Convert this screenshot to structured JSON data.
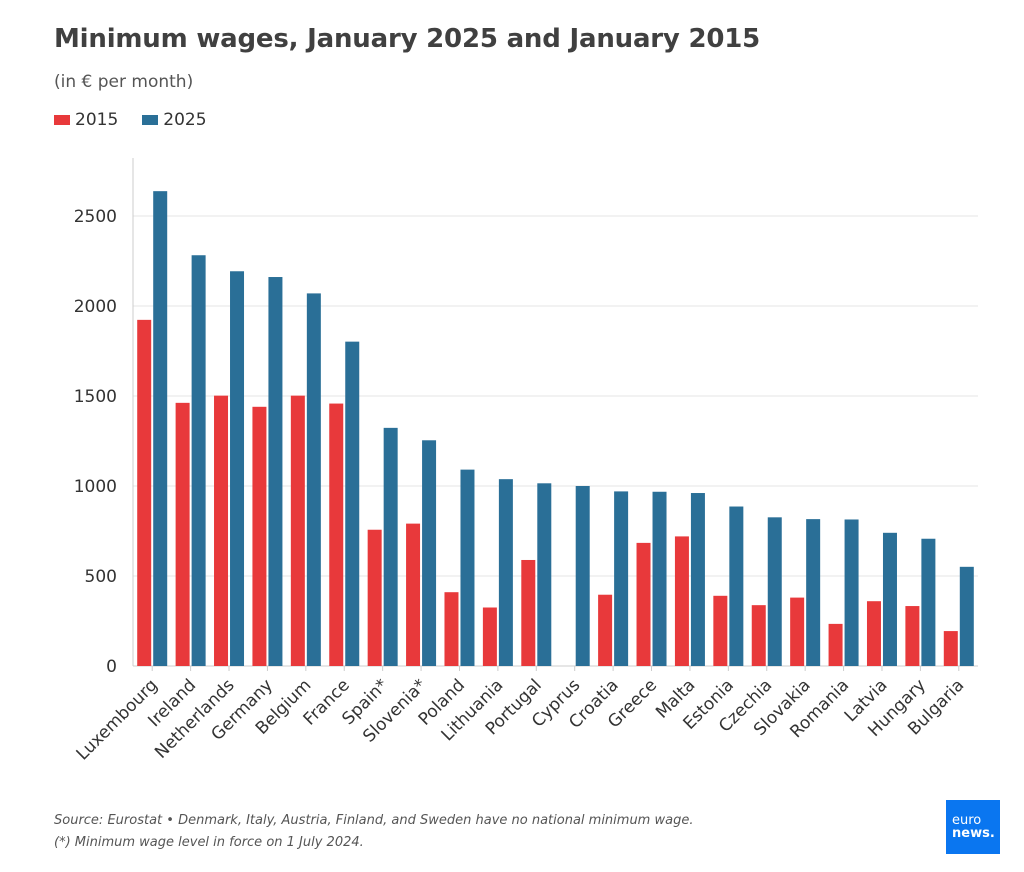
{
  "title": "Minimum wages, January 2025 and January 2015",
  "subtitle": "(in € per month)",
  "legend": [
    {
      "label": "2015",
      "color": "#e8393b"
    },
    {
      "label": "2025",
      "color": "#2a6f97"
    }
  ],
  "footer": {
    "source": "Source: Eurostat • Denmark, Italy, Austria, Finland, and Sweden have no national minimum wage.",
    "note": "(*) Minimum wage level in force on 1 July 2024."
  },
  "logo": {
    "line1": "euro",
    "line2": "news."
  },
  "chart_data": {
    "type": "bar",
    "categories": [
      "Luxembourg",
      "Ireland",
      "Netherlands",
      "Germany",
      "Belgium",
      "France",
      "Spain*",
      "Slovenia*",
      "Poland",
      "Lithuania",
      "Portugal",
      "Cyprus",
      "Croatia",
      "Greece",
      "Malta",
      "Estonia",
      "Czechia",
      "Slovakia",
      "Romania",
      "Latvia",
      "Hungary",
      "Bulgaria"
    ],
    "series": [
      {
        "name": "2015",
        "color": "#e8393b",
        "values": [
          1923,
          1462,
          1502,
          1440,
          1502,
          1458,
          757,
          791,
          410,
          325,
          589,
          null,
          396,
          684,
          720,
          390,
          338,
          380,
          234,
          360,
          333,
          194
        ]
      },
      {
        "name": "2025",
        "color": "#2a6f97",
        "values": [
          2638,
          2282,
          2193,
          2161,
          2070,
          1802,
          1323,
          1254,
          1091,
          1038,
          1015,
          1000,
          970,
          968,
          961,
          886,
          826,
          816,
          814,
          740,
          707,
          551
        ]
      }
    ],
    "yticks": [
      0,
      500,
      1000,
      1500,
      2000,
      2500
    ],
    "ylim": [
      0,
      2800
    ],
    "grid": true,
    "legend_position": "top-left"
  }
}
